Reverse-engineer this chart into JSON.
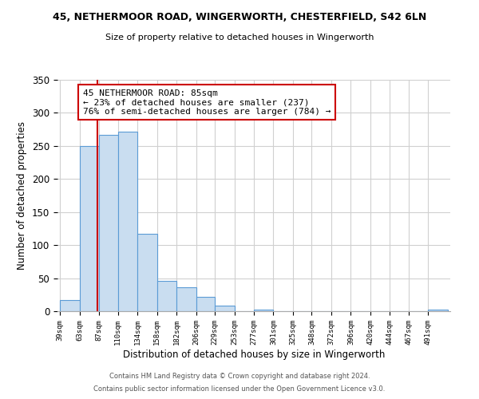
{
  "title1": "45, NETHERMOOR ROAD, WINGERWORTH, CHESTERFIELD, S42 6LN",
  "title2": "Size of property relative to detached houses in Wingerworth",
  "xlabel": "Distribution of detached houses by size in Wingerworth",
  "ylabel": "Number of detached properties",
  "bar_edges": [
    39,
    63,
    87,
    110,
    134,
    158,
    182,
    206,
    229,
    253,
    277,
    301,
    325,
    348,
    372,
    396,
    420,
    444,
    467,
    491,
    515
  ],
  "bar_heights": [
    17,
    250,
    267,
    272,
    117,
    46,
    36,
    22,
    9,
    0,
    2,
    0,
    0,
    0,
    0,
    0,
    0,
    0,
    0,
    2
  ],
  "bar_color": "#c9ddf0",
  "bar_edge_color": "#5b9bd5",
  "vline_x": 85,
  "vline_color": "#cc0000",
  "ylim": [
    0,
    350
  ],
  "yticks": [
    0,
    50,
    100,
    150,
    200,
    250,
    300,
    350
  ],
  "annotation_line1": "45 NETHERMOOR ROAD: 85sqm",
  "annotation_line2": "← 23% of detached houses are smaller (237)",
  "annotation_line3": "76% of semi-detached houses are larger (784) →",
  "annotation_box_color": "#ffffff",
  "annotation_box_edge_color": "#cc0000",
  "footer1": "Contains HM Land Registry data © Crown copyright and database right 2024.",
  "footer2": "Contains public sector information licensed under the Open Government Licence v3.0.",
  "background_color": "#ffffff",
  "grid_color": "#d0d0d0"
}
